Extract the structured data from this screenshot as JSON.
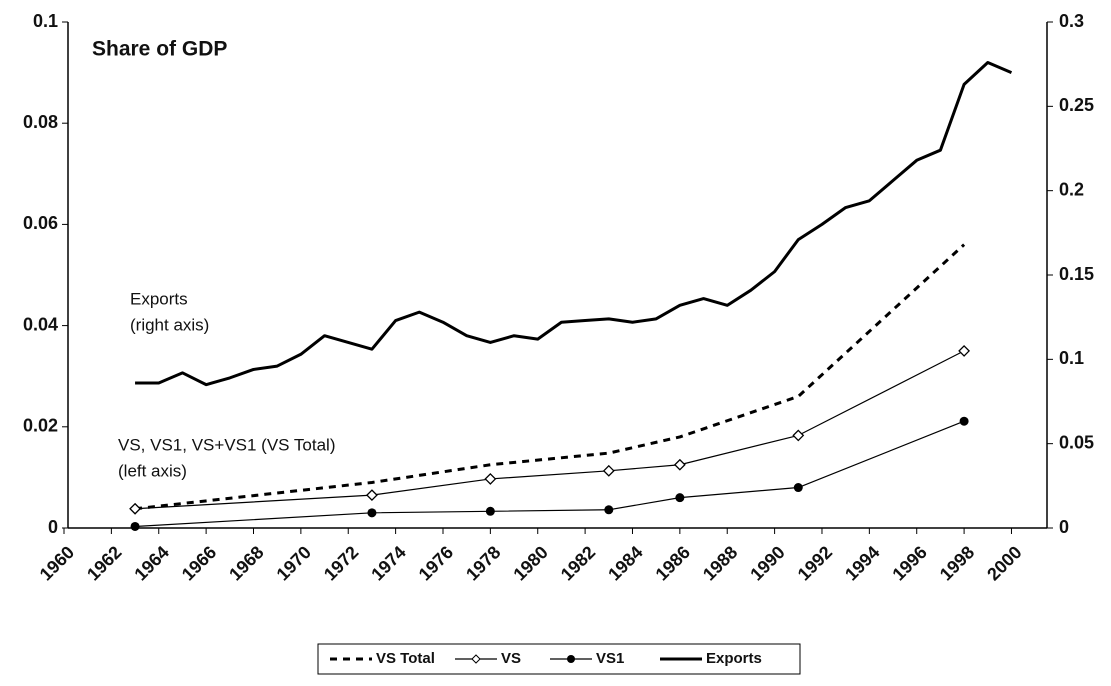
{
  "chart_data": {
    "type": "line",
    "title": "Share of GDP",
    "annotations": [
      "Exports",
      "(right axis)",
      "VS, VS1, VS+VS1 (VS Total)",
      "(left axis)"
    ],
    "xlim": [
      1960,
      2001.5
    ],
    "xticks": [
      1960,
      1962,
      1964,
      1966,
      1968,
      1970,
      1972,
      1974,
      1976,
      1978,
      1980,
      1982,
      1984,
      1986,
      1988,
      1990,
      1992,
      1994,
      1996,
      1998,
      2000
    ],
    "ylim": [
      0,
      0.1
    ],
    "yticks": [
      0,
      0.02,
      0.04,
      0.06,
      0.08,
      0.1
    ],
    "y2lim": [
      0,
      0.3
    ],
    "y2ticks": [
      0,
      0.05,
      0.1,
      0.15,
      0.2,
      0.25,
      0.3
    ],
    "legend": "bottom",
    "grid": false,
    "series": [
      {
        "name": "VS Total",
        "color": "#000000",
        "style": "dashed",
        "marker": "none",
        "axis": "y",
        "x": [
          1963,
          1973,
          1978,
          1983,
          1986,
          1991,
          1998
        ],
        "values": [
          0.0038,
          0.009,
          0.0125,
          0.0148,
          0.018,
          0.026,
          0.056
        ]
      },
      {
        "name": "VS",
        "color": "#000000",
        "style": "solid",
        "marker": "diamond",
        "axis": "y",
        "x": [
          1963,
          1973,
          1978,
          1983,
          1986,
          1991,
          1998
        ],
        "values": [
          0.0038,
          0.0065,
          0.0097,
          0.0113,
          0.0125,
          0.0183,
          0.035
        ]
      },
      {
        "name": "VS1",
        "color": "#000000",
        "style": "solid",
        "marker": "circle",
        "axis": "y",
        "x": [
          1963,
          1973,
          1978,
          1983,
          1986,
          1991,
          1998
        ],
        "values": [
          0.0003,
          0.003,
          0.0033,
          0.0036,
          0.006,
          0.008,
          0.0211
        ]
      },
      {
        "name": "Exports",
        "color": "#000000",
        "style": "thick",
        "marker": "none",
        "axis": "y2",
        "x": [
          1963,
          1964,
          1965,
          1966,
          1967,
          1968,
          1969,
          1970,
          1971,
          1972,
          1973,
          1974,
          1975,
          1976,
          1977,
          1978,
          1979,
          1980,
          1981,
          1982,
          1983,
          1984,
          1985,
          1986,
          1987,
          1988,
          1989,
          1990,
          1991,
          1992,
          1993,
          1994,
          1995,
          1996,
          1997,
          1998,
          1999,
          2000
        ],
        "values": [
          0.086,
          0.086,
          0.092,
          0.085,
          0.089,
          0.094,
          0.096,
          0.103,
          0.114,
          0.11,
          0.106,
          0.123,
          0.128,
          0.122,
          0.114,
          0.11,
          0.114,
          0.112,
          0.122,
          0.123,
          0.124,
          0.122,
          0.124,
          0.132,
          0.136,
          0.132,
          0.141,
          0.152,
          0.171,
          0.18,
          0.19,
          0.194,
          0.206,
          0.218,
          0.224,
          0.263,
          0.276,
          0.27
        ]
      }
    ]
  }
}
